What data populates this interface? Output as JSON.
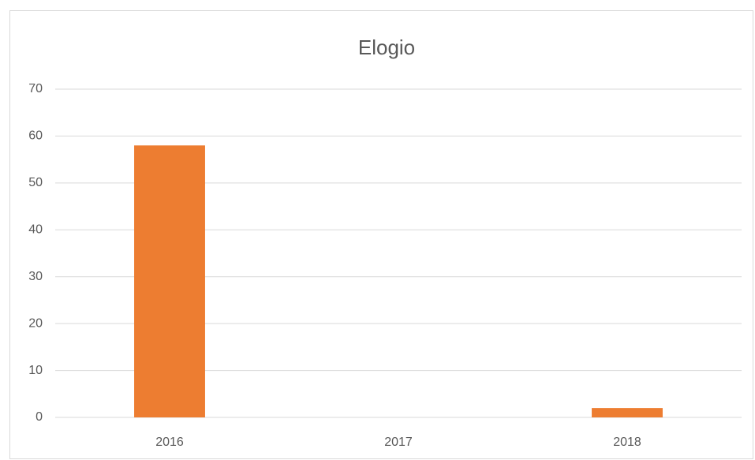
{
  "chart_data": {
    "type": "bar",
    "title": "Elogio",
    "categories": [
      "2016",
      "2017",
      "2018"
    ],
    "values": [
      58,
      0,
      2
    ],
    "color": "#ed7d31",
    "ylim": [
      0,
      70
    ],
    "yticks": [
      0,
      10,
      20,
      30,
      40,
      50,
      60,
      70
    ],
    "grid": true
  }
}
